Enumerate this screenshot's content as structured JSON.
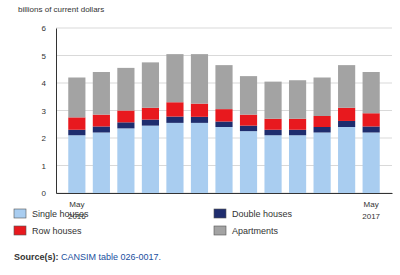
{
  "chart_data": {
    "type": "bar",
    "stacked": true,
    "ylabel": "billions of current dollars",
    "categories": [
      "May 2016",
      null,
      null,
      null,
      null,
      null,
      null,
      null,
      null,
      null,
      null,
      null,
      "May 2017"
    ],
    "series": [
      {
        "name": "Single houses",
        "color": "#a9cdf0",
        "values": [
          2.1,
          2.2,
          2.35,
          2.45,
          2.55,
          2.55,
          2.4,
          2.25,
          2.1,
          2.1,
          2.2,
          2.4,
          2.2
        ]
      },
      {
        "name": "Double houses",
        "color": "#1f2d6e",
        "values": [
          0.2,
          0.22,
          0.22,
          0.22,
          0.23,
          0.22,
          0.2,
          0.2,
          0.2,
          0.2,
          0.2,
          0.22,
          0.22
        ]
      },
      {
        "name": "Row houses",
        "color": "#e8191e",
        "values": [
          0.45,
          0.43,
          0.43,
          0.43,
          0.52,
          0.48,
          0.45,
          0.4,
          0.4,
          0.4,
          0.4,
          0.48,
          0.48
        ]
      },
      {
        "name": "Apartments",
        "color": "#a3a3a3",
        "values": [
          1.45,
          1.55,
          1.55,
          1.65,
          1.75,
          1.8,
          1.6,
          1.4,
          1.35,
          1.4,
          1.4,
          1.55,
          1.5
        ]
      }
    ],
    "ylim": [
      0,
      6
    ],
    "yticks": [
      0,
      1,
      2,
      3,
      4,
      5,
      6
    ],
    "grid": true,
    "legend": "bottom",
    "source": "Source(s): CANSIM table 026-0017."
  }
}
